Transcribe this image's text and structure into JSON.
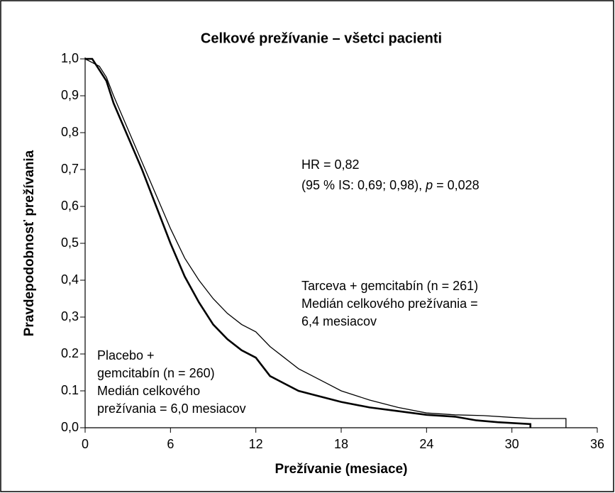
{
  "chart_data": {
    "type": "line",
    "title": "Celkové prežívanie – všetci pacienti",
    "x_label": "Prežívanie (mesiace)",
    "y_label": "Pravdepodobnosť prežívania",
    "xlim": [
      0,
      36
    ],
    "xticks": [
      0,
      6,
      12,
      18,
      24,
      30,
      36
    ],
    "ylim": [
      0,
      1
    ],
    "yticks": [
      {
        "value": 0,
        "label": "0,0"
      },
      {
        "value": 0.1,
        "label": "0.1"
      },
      {
        "value": 0.2,
        "label": "0.2"
      },
      {
        "value": 0.3,
        "label": "0,3"
      },
      {
        "value": 0.4,
        "label": "0,4"
      },
      {
        "value": 0.5,
        "label": "0,5"
      },
      {
        "value": 0.6,
        "label": "0,6"
      },
      {
        "value": 0.7,
        "label": "0,7"
      },
      {
        "value": 0.8,
        "label": "0,8"
      },
      {
        "value": 0.9,
        "label": "0,9"
      },
      {
        "value": 1,
        "label": "1,0"
      }
    ],
    "annotations": {
      "hr": "HR = 0,82",
      "ci_start": "(95 % IS: 0,69; 0,98), ",
      "ci_p": "p",
      "ci_end": " = 0,028",
      "tarceva": [
        "Tarceva + gemcitabín (n = 261)",
        "Medián celkového prežívania =",
        "6,4 mesiacov"
      ],
      "placebo": [
        "Placebo +",
        "gemcitabín (n = 260)",
        "Medián celkového",
        "prežívania = 6,0 mesiacov"
      ]
    },
    "series": [
      {
        "name": "Tarceva + gemcitabín",
        "color": "#000000",
        "width": 1.3,
        "x": [
          0,
          0.5,
          1,
          1.5,
          2,
          3,
          4,
          5,
          6,
          7,
          8,
          9,
          10,
          11,
          12,
          13,
          14,
          15,
          16,
          17,
          18,
          20,
          22,
          24,
          26,
          28,
          30,
          31.5,
          33.8,
          33.8
        ],
        "values": [
          1,
          0.99,
          0.98,
          0.95,
          0.9,
          0.81,
          0.72,
          0.63,
          0.54,
          0.46,
          0.4,
          0.35,
          0.31,
          0.28,
          0.26,
          0.22,
          0.19,
          0.16,
          0.14,
          0.12,
          0.1,
          0.075,
          0.055,
          0.04,
          0.035,
          0.033,
          0.028,
          0.025,
          0.025,
          0
        ]
      },
      {
        "name": "Placebo + gemcitabín",
        "color": "#000000",
        "width": 2.6,
        "x": [
          0,
          0.5,
          1,
          1.5,
          2,
          3,
          4,
          5,
          6,
          7,
          8,
          9,
          10,
          11,
          12,
          13,
          14,
          15,
          16,
          18,
          20,
          22,
          24,
          26,
          27.5,
          29,
          31.3,
          31.3
        ],
        "values": [
          1,
          1,
          0.97,
          0.94,
          0.88,
          0.79,
          0.7,
          0.6,
          0.5,
          0.41,
          0.34,
          0.28,
          0.24,
          0.21,
          0.19,
          0.14,
          0.12,
          0.1,
          0.09,
          0.07,
          0.055,
          0.045,
          0.035,
          0.03,
          0.02,
          0.015,
          0.01,
          0
        ]
      }
    ]
  }
}
